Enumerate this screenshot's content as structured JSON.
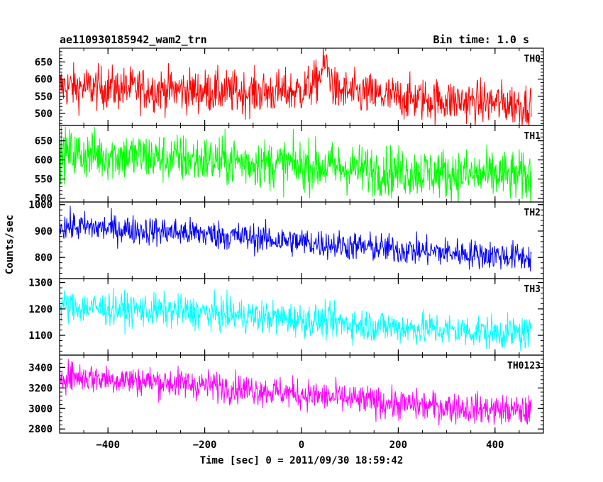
{
  "header": {
    "title": "ae110930185942_wam2_trn",
    "bin_time": "Bin time: 1.0 s"
  },
  "chart_data": {
    "type": "line",
    "title": "ae110930185942_wam2_trn",
    "xlabel": "Time [sec] 0 = 2011/09/30 18:59:42",
    "ylabel": "Counts/sec",
    "xlim": [
      -500,
      500
    ],
    "x_range": [
      -500,
      475
    ],
    "x_ticks": [
      -400,
      -200,
      0,
      200,
      400
    ],
    "x_tick_labels": [
      "−400",
      "−200",
      "0",
      "200",
      "400"
    ],
    "grid": false,
    "panels": [
      {
        "name": "TH0",
        "color": "#ff0000",
        "ylim": [
          465,
          690
        ],
        "yticks": [
          500,
          550,
          600,
          650
        ],
        "trend": [
          [
            -500,
            578
          ],
          [
            -300,
            570
          ],
          [
            -100,
            560
          ],
          [
            0,
            565
          ],
          [
            30,
            590
          ],
          [
            50,
            645
          ],
          [
            70,
            565
          ],
          [
            200,
            545
          ],
          [
            475,
            525
          ]
        ],
        "noise": 32
      },
      {
        "name": "TH1",
        "color": "#00ff00",
        "ylim": [
          490,
          690
        ],
        "yticks": [
          500,
          550,
          600,
          650
        ],
        "trend": [
          [
            -500,
            618
          ],
          [
            -200,
            600
          ],
          [
            0,
            585
          ],
          [
            200,
            570
          ],
          [
            475,
            555
          ]
        ],
        "noise": 33
      },
      {
        "name": "TH2",
        "color": "#0000ff",
        "ylim": [
          720,
          1010
        ],
        "yticks": [
          800,
          900,
          1000
        ],
        "trend": [
          [
            -500,
            920
          ],
          [
            -200,
            890
          ],
          [
            0,
            858
          ],
          [
            200,
            830
          ],
          [
            475,
            800
          ]
        ],
        "noise": 28
      },
      {
        "name": "TH3",
        "color": "#00ffff",
        "ylim": [
          1025,
          1315
        ],
        "yticks": [
          1100,
          1200,
          1300
        ],
        "trend": [
          [
            -500,
            1210
          ],
          [
            -200,
            1185
          ],
          [
            0,
            1160
          ],
          [
            200,
            1130
          ],
          [
            475,
            1105
          ]
        ],
        "noise": 32
      },
      {
        "name": "TH0123",
        "color": "#ff00ff",
        "ylim": [
          2760,
          3520
        ],
        "yticks": [
          2800,
          3000,
          3200,
          3400
        ],
        "trend": [
          [
            -500,
            3320
          ],
          [
            -200,
            3230
          ],
          [
            0,
            3140
          ],
          [
            200,
            3040
          ],
          [
            475,
            2970
          ]
        ],
        "noise": 75
      }
    ]
  }
}
